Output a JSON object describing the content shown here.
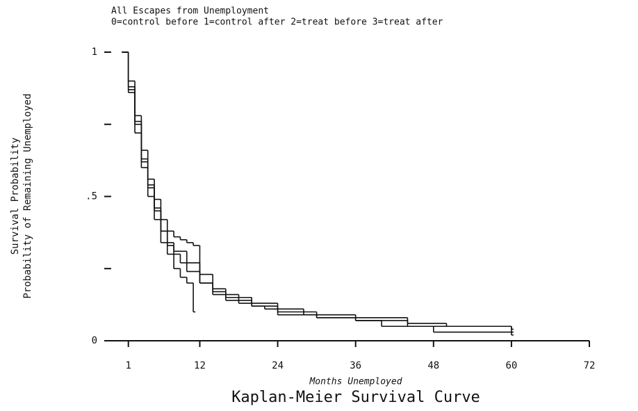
{
  "chart_data": {
    "type": "step",
    "title": "All Escapes from Unemployment",
    "subtitle": "0=control before 1=control after 2=treat before 3=treat after",
    "y_label": [
      "Survival Probability",
      "Probability of Remaining Unemployed"
    ],
    "x_label": "Months Unemployed",
    "caption": "Kaplan-Meier Survival Curve",
    "xlim": [
      -2.5,
      72
    ],
    "xticks": [
      1,
      12,
      24,
      36,
      48,
      60,
      72
    ],
    "ylim": [
      0,
      1
    ],
    "yticks": [
      0,
      {
        "value": 0.5,
        "label": ".5"
      },
      1
    ],
    "yminor_ticks": [
      0.25,
      0.75
    ],
    "series": [
      {
        "name": "0",
        "color": "#111111",
        "x": [
          0,
          1,
          2,
          3,
          4,
          5,
          6,
          7,
          8,
          9,
          10,
          11
        ],
        "values": [
          1,
          0.86,
          0.72,
          0.6,
          0.5,
          0.42,
          0.34,
          0.3,
          0.25,
          0.22,
          0.2,
          0.1
        ]
      },
      {
        "name": "1",
        "color": "#111111",
        "x": [
          0,
          1,
          2,
          3,
          4,
          5,
          6,
          7,
          8,
          9,
          10,
          12,
          14,
          16,
          18,
          20,
          22,
          24,
          30,
          36,
          44,
          60
        ],
        "values": [
          1,
          0.88,
          0.76,
          0.63,
          0.54,
          0.46,
          0.38,
          0.33,
          0.3,
          0.27,
          0.24,
          0.2,
          0.17,
          0.15,
          0.14,
          0.12,
          0.11,
          0.09,
          0.08,
          0.07,
          0.05,
          0.03
        ]
      },
      {
        "name": "2",
        "color": "#111111",
        "x": [
          0,
          1,
          2,
          3,
          4,
          5,
          6,
          7,
          8,
          9,
          10,
          11,
          12,
          14,
          16,
          18,
          20,
          24,
          28,
          36,
          44,
          50,
          60
        ],
        "values": [
          1,
          0.9,
          0.78,
          0.66,
          0.56,
          0.49,
          0.42,
          0.38,
          0.36,
          0.35,
          0.34,
          0.33,
          0.23,
          0.18,
          0.16,
          0.15,
          0.13,
          0.11,
          0.09,
          0.08,
          0.06,
          0.05,
          0.04
        ]
      },
      {
        "name": "3",
        "color": "#111111",
        "x": [
          0,
          1,
          2,
          3,
          4,
          5,
          6,
          7,
          8,
          10,
          12,
          14,
          16,
          18,
          20,
          24,
          30,
          36,
          40,
          48,
          60
        ],
        "values": [
          1,
          0.87,
          0.75,
          0.62,
          0.53,
          0.45,
          0.38,
          0.34,
          0.31,
          0.27,
          0.2,
          0.16,
          0.14,
          0.13,
          0.12,
          0.1,
          0.08,
          0.07,
          0.05,
          0.03,
          0.02
        ]
      }
    ]
  }
}
